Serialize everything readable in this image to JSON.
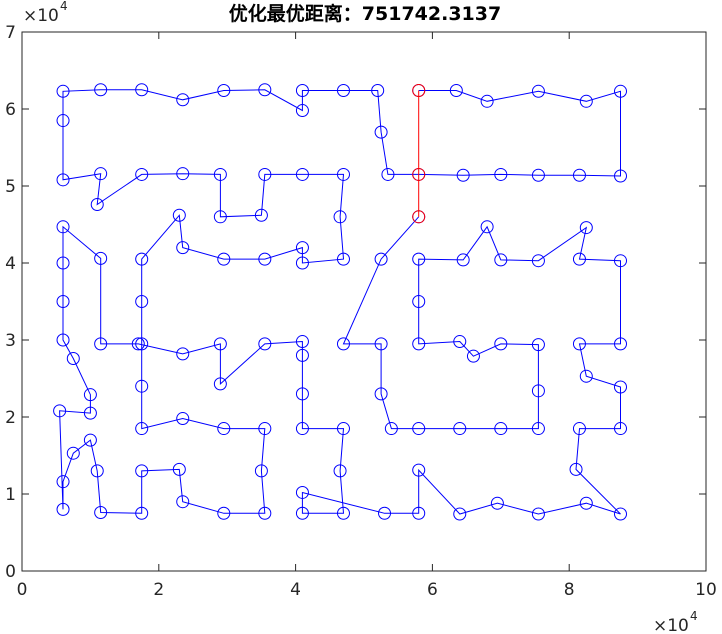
{
  "chart_data": {
    "type": "line",
    "title": "优化最优距离：751742.3137",
    "xlabel": "",
    "ylabel": "",
    "xlim": [
      0,
      100000
    ],
    "ylim": [
      0,
      70000
    ],
    "x_ticks": [
      0,
      20000,
      40000,
      60000,
      80000,
      100000
    ],
    "x_tick_labels": [
      "0",
      "2",
      "4",
      "6",
      "8",
      "10"
    ],
    "y_ticks": [
      0,
      10000,
      20000,
      30000,
      40000,
      50000,
      60000,
      70000
    ],
    "y_tick_labels": [
      "0",
      "1",
      "2",
      "3",
      "4",
      "5",
      "6",
      "7"
    ],
    "x_exponent": {
      "base": "×10",
      "power": "4"
    },
    "y_exponent": {
      "base": "×10",
      "power": "4"
    },
    "grid": false,
    "colors": {
      "route": "#0000ff",
      "highlight": "#ff0000",
      "axis": "#262626"
    },
    "series": [
      {
        "role": "route",
        "marker": "circle",
        "points": [
          [
            58000,
            62400
          ],
          [
            63500,
            62400
          ],
          [
            68000,
            61000
          ],
          [
            75500,
            62300
          ],
          [
            82500,
            61000
          ],
          [
            87500,
            62300
          ],
          [
            87500,
            51300
          ],
          [
            81500,
            51400
          ],
          [
            75500,
            51400
          ],
          [
            70000,
            51500
          ],
          [
            64500,
            51400
          ],
          [
            58000,
            51500
          ],
          [
            53500,
            51500
          ],
          [
            52500,
            57000
          ],
          [
            52000,
            62400
          ],
          [
            47000,
            62400
          ],
          [
            41000,
            62400
          ],
          [
            41000,
            59800
          ],
          [
            35500,
            62500
          ],
          [
            29500,
            62400
          ],
          [
            23500,
            61200
          ],
          [
            17500,
            62500
          ],
          [
            11500,
            62500
          ],
          [
            6000,
            62300
          ],
          [
            6000,
            58500
          ],
          [
            6000,
            50800
          ],
          [
            11500,
            51600
          ],
          [
            11000,
            47600
          ],
          [
            17500,
            51500
          ],
          [
            23500,
            51600
          ],
          [
            29000,
            51500
          ],
          [
            29000,
            46000
          ],
          [
            35000,
            46200
          ],
          [
            35500,
            51500
          ],
          [
            41000,
            51500
          ],
          [
            47000,
            51500
          ],
          [
            46500,
            46000
          ],
          [
            47000,
            40500
          ],
          [
            41000,
            40000
          ],
          [
            41000,
            42000
          ],
          [
            35500,
            40500
          ],
          [
            29500,
            40500
          ],
          [
            23500,
            42000
          ],
          [
            23000,
            46200
          ],
          [
            17500,
            40500
          ],
          [
            17500,
            35000
          ],
          [
            17500,
            29500
          ],
          [
            17500,
            24000
          ],
          [
            17500,
            18500
          ],
          [
            23500,
            19800
          ],
          [
            29500,
            18500
          ],
          [
            35500,
            18500
          ],
          [
            35000,
            13000
          ],
          [
            35500,
            7500
          ],
          [
            29500,
            7500
          ],
          [
            23500,
            9000
          ],
          [
            23000,
            13200
          ],
          [
            17500,
            13000
          ],
          [
            17500,
            7500
          ],
          [
            11500,
            7600
          ],
          [
            11000,
            13000
          ],
          [
            10000,
            17000
          ],
          [
            7500,
            15300
          ],
          [
            6000,
            11600
          ],
          [
            6000,
            8000
          ],
          [
            5500,
            20800
          ],
          [
            10000,
            20500
          ],
          [
            10000,
            22900
          ],
          [
            7500,
            27600
          ],
          [
            6000,
            30000
          ],
          [
            6000,
            35000
          ],
          [
            6000,
            40000
          ],
          [
            6000,
            44700
          ],
          [
            11500,
            40600
          ],
          [
            11500,
            29500
          ],
          [
            17000,
            29500
          ],
          [
            23500,
            28200
          ],
          [
            29000,
            29500
          ],
          [
            29000,
            24300
          ],
          [
            35500,
            29500
          ],
          [
            41000,
            29800
          ],
          [
            41000,
            28000
          ],
          [
            41000,
            23000
          ],
          [
            41000,
            18500
          ],
          [
            47000,
            18500
          ],
          [
            46500,
            13000
          ],
          [
            47000,
            7500
          ],
          [
            41000,
            7500
          ],
          [
            41000,
            10200
          ],
          [
            53000,
            7500
          ],
          [
            58000,
            7500
          ],
          [
            58000,
            13100
          ],
          [
            64000,
            7400
          ],
          [
            69500,
            8800
          ],
          [
            75500,
            7400
          ],
          [
            82500,
            8800
          ],
          [
            87500,
            7400
          ],
          [
            81000,
            13200
          ],
          [
            81500,
            18500
          ],
          [
            87500,
            18500
          ],
          [
            87500,
            23900
          ],
          [
            82500,
            25300
          ],
          [
            81500,
            29500
          ],
          [
            87500,
            29500
          ],
          [
            87500,
            40300
          ],
          [
            81500,
            40500
          ],
          [
            82500,
            44600
          ],
          [
            75500,
            40300
          ],
          [
            70000,
            40400
          ],
          [
            68000,
            44700
          ],
          [
            64500,
            40400
          ],
          [
            58000,
            40500
          ],
          [
            58000,
            35000
          ],
          [
            58000,
            29500
          ],
          [
            64000,
            29800
          ],
          [
            66000,
            27900
          ],
          [
            70000,
            29500
          ],
          [
            75500,
            29400
          ],
          [
            75500,
            23400
          ],
          [
            75500,
            18500
          ],
          [
            70000,
            18500
          ],
          [
            64000,
            18500
          ],
          [
            58000,
            18500
          ],
          [
            54000,
            18500
          ],
          [
            52500,
            23000
          ],
          [
            52500,
            29500
          ],
          [
            47000,
            29500
          ],
          [
            52500,
            40500
          ],
          [
            58000,
            46000
          ]
        ]
      },
      {
        "role": "highlight",
        "marker": "circle",
        "points": [
          [
            58000,
            46000
          ],
          [
            58000,
            51500
          ],
          [
            58000,
            62400
          ]
        ]
      }
    ]
  }
}
